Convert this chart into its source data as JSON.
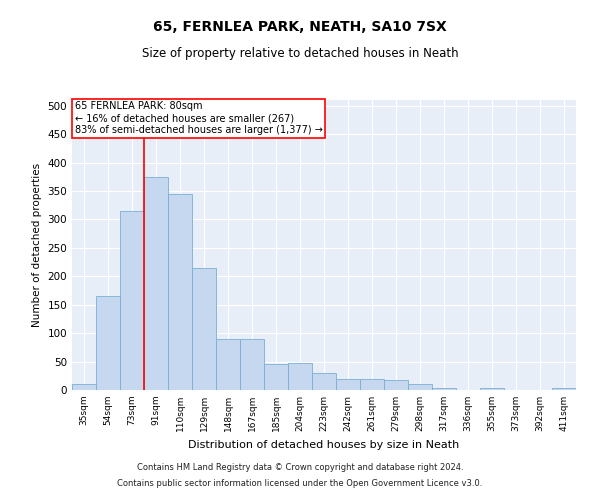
{
  "title": "65, FERNLEA PARK, NEATH, SA10 7SX",
  "subtitle": "Size of property relative to detached houses in Neath",
  "xlabel": "Distribution of detached houses by size in Neath",
  "ylabel": "Number of detached properties",
  "categories": [
    "35sqm",
    "54sqm",
    "73sqm",
    "91sqm",
    "110sqm",
    "129sqm",
    "148sqm",
    "167sqm",
    "185sqm",
    "204sqm",
    "223sqm",
    "242sqm",
    "261sqm",
    "279sqm",
    "298sqm",
    "317sqm",
    "336sqm",
    "355sqm",
    "373sqm",
    "392sqm",
    "411sqm"
  ],
  "values": [
    10,
    165,
    315,
    375,
    345,
    215,
    90,
    90,
    45,
    47,
    30,
    20,
    20,
    18,
    10,
    3,
    0,
    3,
    0,
    0,
    3
  ],
  "bar_color": "#c5d8f0",
  "bar_edge_color": "#7aafd4",
  "red_line_x": 2.5,
  "annotation_text": "65 FERNLEA PARK: 80sqm\n← 16% of detached houses are smaller (267)\n83% of semi-detached houses are larger (1,377) →",
  "ylim": [
    0,
    510
  ],
  "yticks": [
    0,
    50,
    100,
    150,
    200,
    250,
    300,
    350,
    400,
    450,
    500
  ],
  "background_color": "#e8eef8",
  "footer_line1": "Contains HM Land Registry data © Crown copyright and database right 2024.",
  "footer_line2": "Contains public sector information licensed under the Open Government Licence v3.0."
}
